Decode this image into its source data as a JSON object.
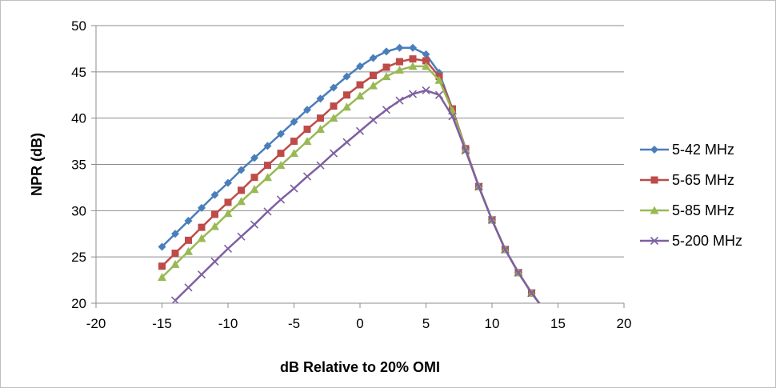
{
  "chart_data": {
    "type": "line",
    "title": "",
    "xlabel": "dB Relative to 20% OMI",
    "ylabel": "NPR (dB)",
    "xlim": [
      -20,
      20
    ],
    "ylim": [
      20,
      50
    ],
    "xticks": [
      -20,
      -15,
      -10,
      -5,
      0,
      5,
      10,
      15,
      20
    ],
    "yticks": [
      20,
      25,
      30,
      35,
      40,
      45,
      50
    ],
    "grid": "horizontal",
    "legend_position": "right",
    "series": [
      {
        "name": "5-42 MHz",
        "color": "#4a7ebb",
        "marker": "diamond",
        "x": [
          -15,
          -14,
          -13,
          -12,
          -11,
          -10,
          -9,
          -8,
          -7,
          -6,
          -5,
          -4,
          -3,
          -2,
          -1,
          0,
          1,
          2,
          3,
          4,
          5,
          6,
          7,
          8,
          9,
          10,
          11,
          12,
          13,
          14
        ],
        "y": [
          26.1,
          27.5,
          28.9,
          30.3,
          31.7,
          33.0,
          34.4,
          35.7,
          37.0,
          38.3,
          39.6,
          40.9,
          42.1,
          43.3,
          44.5,
          45.6,
          46.5,
          47.2,
          47.6,
          47.6,
          46.9,
          44.9,
          41.0,
          36.7,
          32.6,
          29.0,
          25.8,
          23.3,
          21.1,
          19.2
        ]
      },
      {
        "name": "5-65 MHz",
        "color": "#be4b48",
        "marker": "square",
        "x": [
          -15,
          -14,
          -13,
          -12,
          -11,
          -10,
          -9,
          -8,
          -7,
          -6,
          -5,
          -4,
          -3,
          -2,
          -1,
          0,
          1,
          2,
          3,
          4,
          5,
          6,
          7,
          8,
          9,
          10,
          11,
          12,
          13,
          14
        ],
        "y": [
          24.0,
          25.4,
          26.8,
          28.2,
          29.6,
          30.9,
          32.2,
          33.6,
          34.9,
          36.2,
          37.5,
          38.8,
          40.0,
          41.3,
          42.5,
          43.6,
          44.6,
          45.5,
          46.1,
          46.4,
          46.2,
          44.5,
          41.0,
          36.7,
          32.6,
          29.0,
          25.8,
          23.3,
          21.1,
          19.2
        ]
      },
      {
        "name": "5-85 MHz",
        "color": "#98b954",
        "marker": "triangle",
        "x": [
          -15,
          -14,
          -13,
          -12,
          -11,
          -10,
          -9,
          -8,
          -7,
          -6,
          -5,
          -4,
          -3,
          -2,
          -1,
          0,
          1,
          2,
          3,
          4,
          5,
          6,
          7,
          8,
          9,
          10,
          11,
          12,
          13,
          14
        ],
        "y": [
          22.8,
          24.2,
          25.6,
          27.0,
          28.3,
          29.7,
          31.0,
          32.3,
          33.6,
          34.9,
          36.2,
          37.5,
          38.8,
          40.0,
          41.2,
          42.4,
          43.5,
          44.5,
          45.2,
          45.6,
          45.6,
          44.1,
          40.8,
          36.6,
          32.6,
          29.0,
          25.8,
          23.3,
          21.1,
          19.2
        ]
      },
      {
        "name": "5-200 MHz",
        "color": "#7d60a0",
        "marker": "x",
        "x": [
          -14,
          -13,
          -12,
          -11,
          -10,
          -9,
          -8,
          -7,
          -6,
          -5,
          -4,
          -3,
          -2,
          -1,
          0,
          1,
          2,
          3,
          4,
          5,
          6,
          7,
          8,
          9,
          10,
          11,
          12,
          13,
          14
        ],
        "y": [
          20.3,
          21.7,
          23.1,
          24.5,
          25.9,
          27.2,
          28.5,
          29.9,
          31.2,
          32.4,
          33.7,
          34.9,
          36.2,
          37.4,
          38.6,
          39.8,
          40.9,
          41.9,
          42.6,
          43.0,
          42.5,
          40.2,
          36.5,
          32.6,
          29.0,
          25.8,
          23.3,
          21.1,
          19.2
        ]
      }
    ]
  }
}
